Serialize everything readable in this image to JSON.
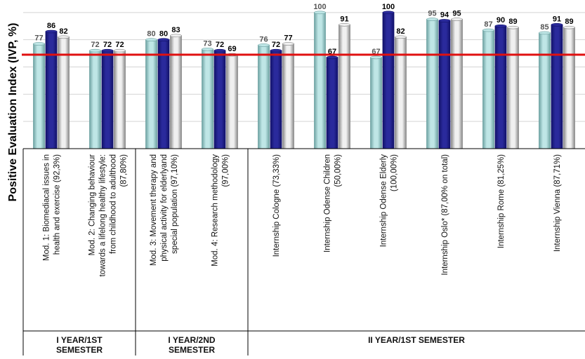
{
  "chart_data": {
    "type": "bar",
    "ylabel": "Positive Evaluation Index (IVP, %)",
    "ylim": [
      0,
      100
    ],
    "reference_line": 69,
    "categories": [
      [
        "Mod. 1: Biomediacal issues in",
        "health and exercise  (92,3%)"
      ],
      [
        "Mod. 2: Changing behaviour",
        "towards a lifelong healthy lifestyle:",
        "from childhood to adulthood",
        "(87,80%)"
      ],
      [
        "Mod. 3: Movement therapy and",
        "physical activity for elderlyand",
        "special population (97,10%)"
      ],
      [
        "Mod. 4: Research methodology",
        "(97,00%)"
      ],
      [
        "Internship Cologne (73,33%)"
      ],
      [
        "Internship Odense Children",
        "(50,00%)"
      ],
      [
        "Internship  Odense Elderly",
        "(100,00%)"
      ],
      [
        "Internship Oslo* (87,00% on total)"
      ],
      [
        "Internship  Rome (81,25%)"
      ],
      [
        "Internship  Vienna  (87,71%)"
      ]
    ],
    "series": [
      {
        "values": [
          77,
          72,
          80,
          73,
          76,
          100,
          67,
          95,
          87,
          85
        ]
      },
      {
        "values": [
          86,
          72,
          80,
          72,
          72,
          67,
          100,
          94,
          90,
          91
        ]
      },
      {
        "values": [
          82,
          72,
          83,
          69,
          77,
          91,
          82,
          95,
          89,
          89
        ]
      }
    ],
    "groups": [
      {
        "label": [
          "I YEAR/1ST",
          "SEMESTER"
        ],
        "from": 0,
        "to": 1
      },
      {
        "label": [
          "I YEAR/2ND",
          "SEMESTER"
        ],
        "from": 2,
        "to": 3
      },
      {
        "label": [
          "II YEAR/1ST SEMESTER"
        ],
        "from": 4,
        "to": 9
      }
    ],
    "grid": true,
    "legend": "none",
    "colors": {
      "series": [
        "#bfe6e6",
        "#2a2a9c",
        "#f0f0f0"
      ],
      "series_edge": [
        "#6fa3a3",
        "#12126a",
        "#8a8a8a"
      ],
      "value_text": [
        "#555555",
        "#000000",
        "#000000"
      ],
      "reference_line": "#e01010",
      "grid": "#d4d4d4"
    }
  }
}
